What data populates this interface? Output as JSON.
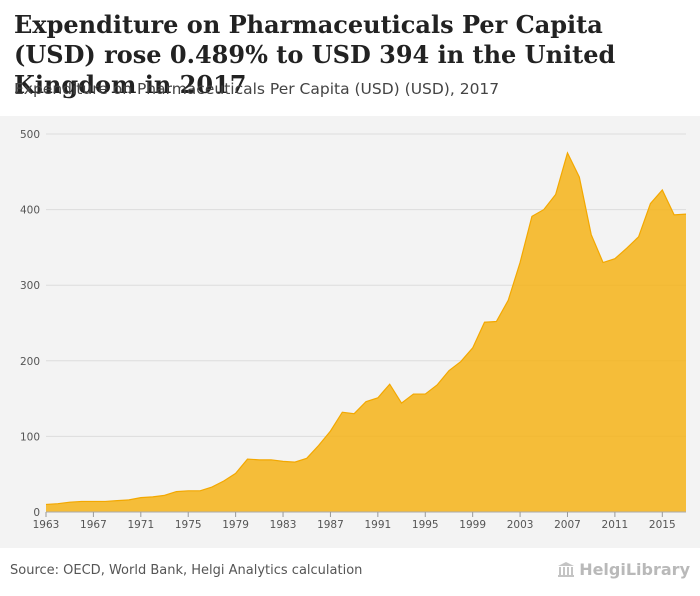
{
  "header": {
    "title": "Expenditure on Pharmaceuticals Per Capita (USD) rose 0.489% to USD 394 in the United Kingdom in 2017",
    "subtitle": "Expenditure on Pharmaceuticals Per Capita (USD) (USD), 2017"
  },
  "footer": {
    "source": "Source: OECD, World Bank, Helgi Analytics calculation",
    "logo_text": "HelgiLibrary"
  },
  "colors": {
    "area_fill": "#f5b51f",
    "area_stroke": "#f3a800",
    "panel": "#f3f3f3",
    "grid": "#dcdcdc",
    "tick_text": "#555555"
  },
  "chart_data": {
    "type": "area",
    "title": "",
    "xlabel": "",
    "ylabel": "",
    "x": [
      1963,
      1964,
      1965,
      1966,
      1967,
      1968,
      1969,
      1970,
      1971,
      1972,
      1973,
      1974,
      1975,
      1976,
      1977,
      1978,
      1979,
      1980,
      1981,
      1982,
      1983,
      1984,
      1985,
      1986,
      1987,
      1988,
      1989,
      1990,
      1991,
      1992,
      1993,
      1994,
      1995,
      1996,
      1997,
      1998,
      1999,
      2000,
      2001,
      2002,
      2003,
      2004,
      2005,
      2006,
      2007,
      2008,
      2009,
      2010,
      2011,
      2012,
      2013,
      2014,
      2015,
      2016,
      2017
    ],
    "series": [
      {
        "values": [
          10,
          11,
          13,
          14,
          14,
          14,
          15,
          16,
          19,
          20,
          22,
          27,
          28,
          28,
          33,
          41,
          51,
          70,
          69,
          69,
          67,
          66,
          71,
          88,
          107,
          132,
          130,
          146,
          151,
          169,
          144,
          156,
          156,
          168,
          187,
          199,
          217,
          251,
          252,
          280,
          330,
          391,
          400,
          420,
          475,
          443,
          367,
          330,
          335,
          349,
          364,
          408,
          426,
          393,
          394
        ]
      }
    ],
    "xticks": [
      "1963",
      "1967",
      "1971",
      "1975",
      "1979",
      "1983",
      "1987",
      "1991",
      "1995",
      "1999",
      "2003",
      "2007",
      "2011",
      "2015"
    ],
    "yticks": [
      0,
      100,
      200,
      300,
      400,
      500
    ],
    "ylim": [
      0,
      500
    ],
    "xlim": [
      1963,
      2017
    ],
    "grid": true,
    "legend": "none"
  }
}
